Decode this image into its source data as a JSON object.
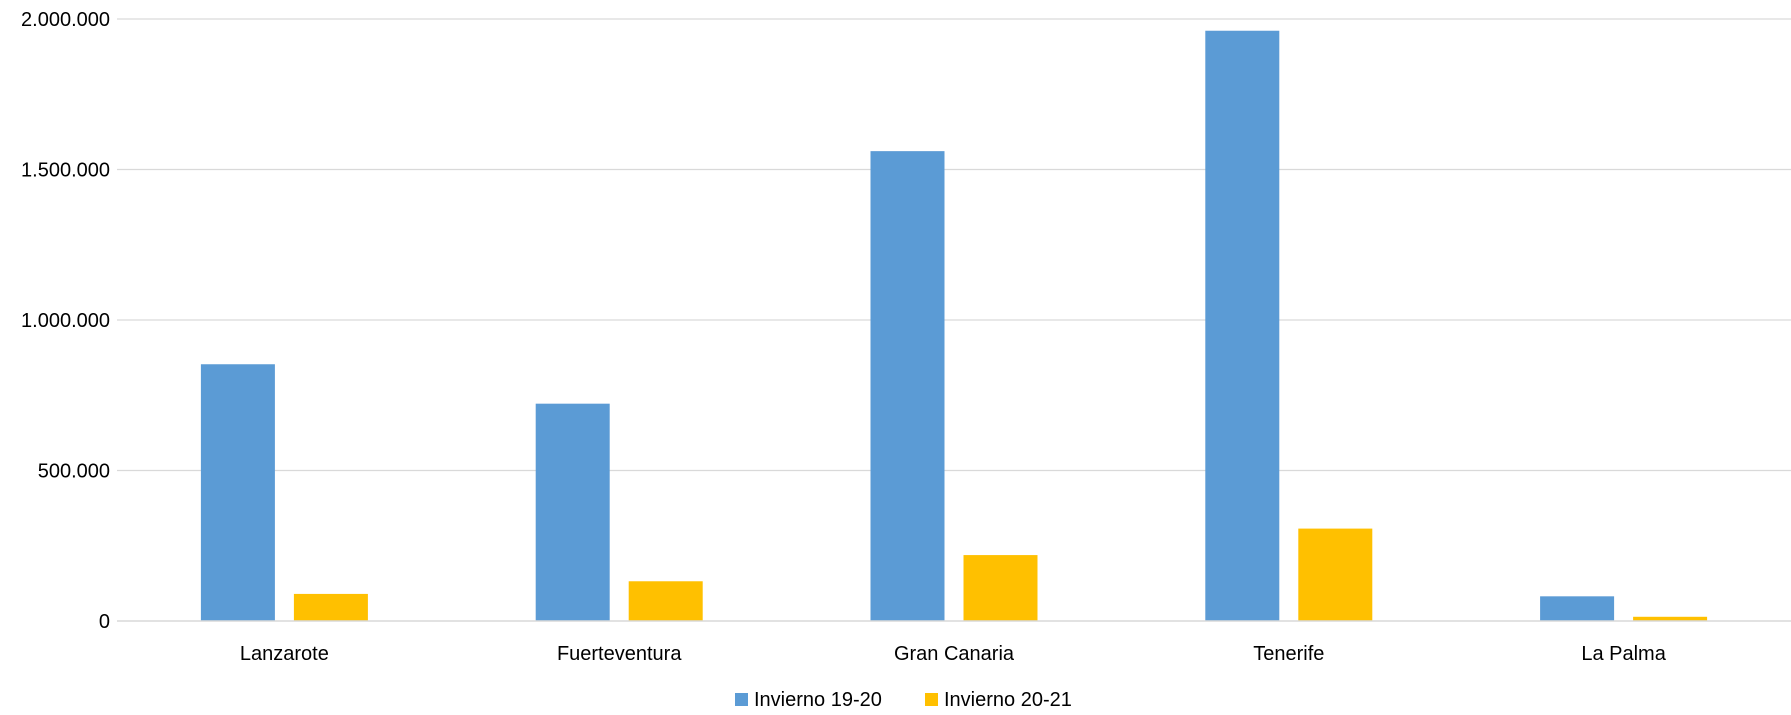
{
  "chart_data": {
    "type": "bar",
    "title": "",
    "xlabel": "",
    "ylabel": "",
    "ylim": [
      0,
      2000000
    ],
    "y_ticks": [
      0,
      500000,
      1000000,
      1500000,
      2000000
    ],
    "y_tick_labels": [
      "0",
      "500.000",
      "1.000.000",
      "1.500.000",
      "2.000.000"
    ],
    "categories": [
      "Lanzarote",
      "Fuerteventura",
      "Gran Canaria",
      "Tenerife",
      "La Palma"
    ],
    "series": [
      {
        "name": "Invierno 19-20",
        "color": "#5B9BD5",
        "values": [
          853000,
          722000,
          1561000,
          1961000,
          82000
        ]
      },
      {
        "name": "Invierno 20-21",
        "color": "#FFC000",
        "values": [
          90000,
          132000,
          219000,
          307000,
          14000
        ]
      }
    ],
    "grid": true,
    "legend_position": "bottom"
  }
}
